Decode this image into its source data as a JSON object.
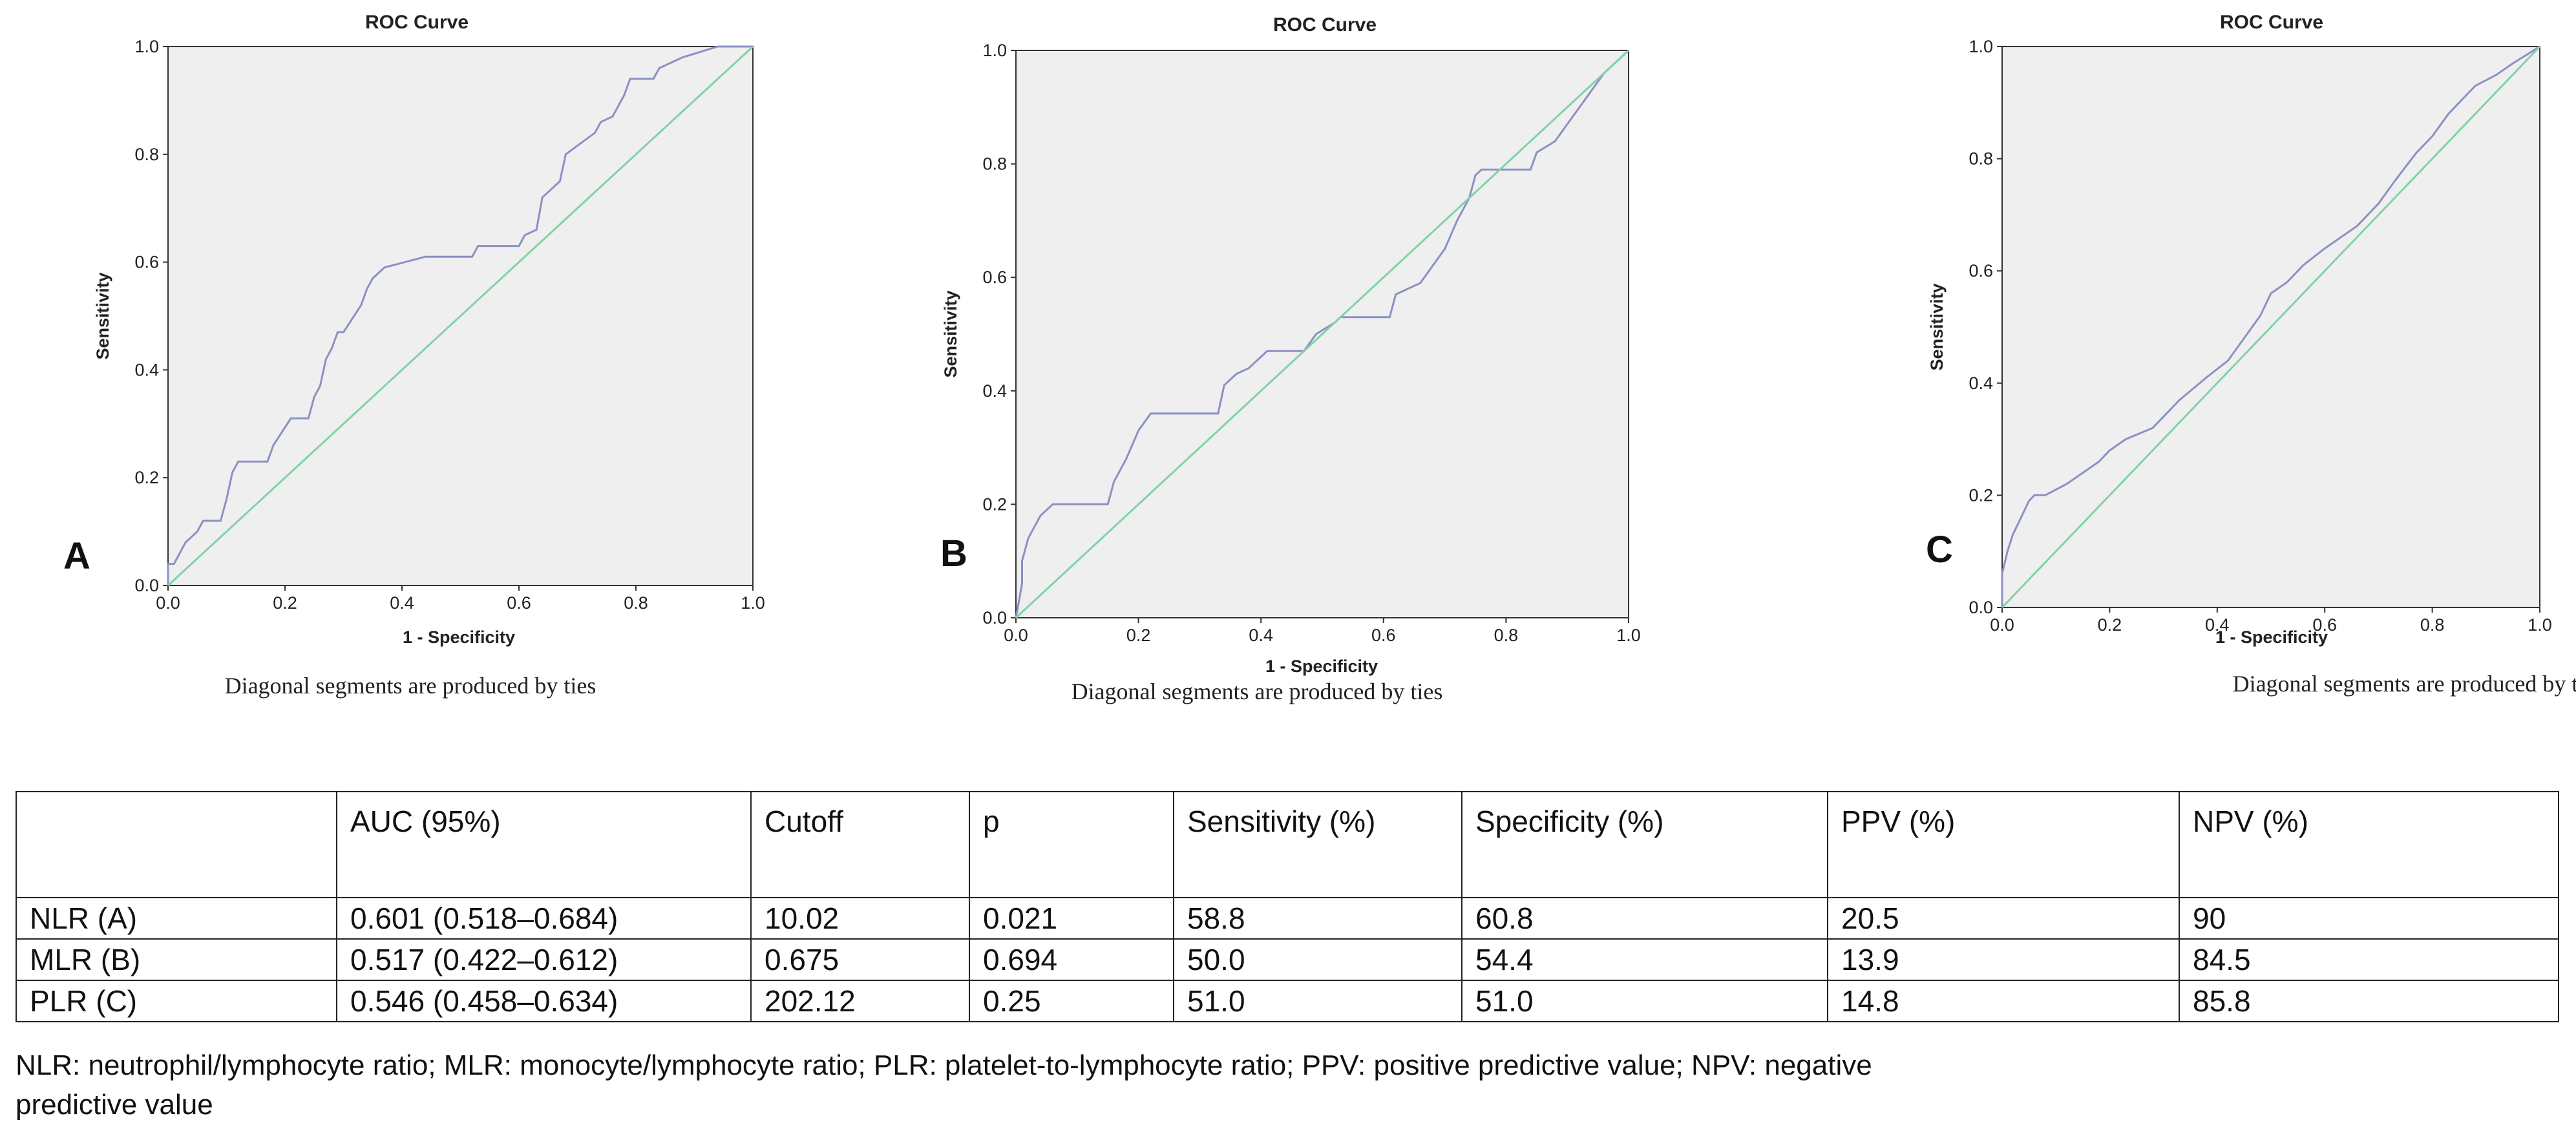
{
  "chart_data": [
    {
      "type": "line",
      "panel": "A",
      "title": "ROC Curve",
      "xlabel": "1 - Specificity",
      "ylabel": "Sensitivity",
      "xlim": [
        0,
        1
      ],
      "ylim": [
        0,
        1
      ],
      "xticks": [
        "0.0",
        "0.2",
        "0.4",
        "0.6",
        "0.8",
        "1.0"
      ],
      "yticks": [
        "0.0",
        "0.2",
        "0.4",
        "0.6",
        "0.8",
        "1.0"
      ],
      "footnote": "Diagonal segments are produced by ties",
      "series": [
        {
          "name": "ROC",
          "color": "#8B91C2",
          "x": [
            0,
            0,
            0.01,
            0.02,
            0.03,
            0.05,
            0.06,
            0.09,
            0.1,
            0.11,
            0.12,
            0.17,
            0.18,
            0.21,
            0.24,
            0.25,
            0.26,
            0.27,
            0.28,
            0.29,
            0.3,
            0.33,
            0.34,
            0.35,
            0.37,
            0.44,
            0.52,
            0.53,
            0.6,
            0.61,
            0.63,
            0.64,
            0.65,
            0.67,
            0.68,
            0.73,
            0.74,
            0.76,
            0.78,
            0.79,
            0.83,
            0.84,
            0.88,
            0.94,
            1.0
          ],
          "y": [
            0,
            0.04,
            0.04,
            0.06,
            0.08,
            0.1,
            0.12,
            0.12,
            0.16,
            0.21,
            0.23,
            0.23,
            0.26,
            0.31,
            0.31,
            0.35,
            0.37,
            0.42,
            0.44,
            0.47,
            0.47,
            0.52,
            0.55,
            0.57,
            0.59,
            0.61,
            0.61,
            0.63,
            0.63,
            0.65,
            0.66,
            0.72,
            0.73,
            0.75,
            0.8,
            0.84,
            0.86,
            0.87,
            0.91,
            0.94,
            0.94,
            0.96,
            0.98,
            1.0,
            1.0
          ]
        },
        {
          "name": "Reference Line",
          "color": "#7FD3A6",
          "x": [
            0,
            1
          ],
          "y": [
            0,
            1
          ]
        }
      ]
    },
    {
      "type": "line",
      "panel": "B",
      "title": "ROC Curve",
      "xlabel": "1 - Specificity",
      "ylabel": "Sensitivity",
      "xlim": [
        0,
        1
      ],
      "ylim": [
        0,
        1
      ],
      "xticks": [
        "0.0",
        "0.2",
        "0.4",
        "0.6",
        "0.8",
        "1.0"
      ],
      "yticks": [
        "0.0",
        "0.2",
        "0.4",
        "0.6",
        "0.8",
        "1.0"
      ],
      "footnote": "Diagonal segments are produced by ties",
      "series": [
        {
          "name": "ROC",
          "color": "#8B91C2",
          "x": [
            0,
            0.01,
            0.01,
            0.02,
            0.04,
            0.06,
            0.15,
            0.16,
            0.18,
            0.2,
            0.22,
            0.33,
            0.34,
            0.36,
            0.38,
            0.41,
            0.47,
            0.49,
            0.52,
            0.53,
            0.61,
            0.62,
            0.66,
            0.68,
            0.7,
            0.72,
            0.74,
            0.75,
            0.76,
            0.84,
            0.85,
            0.88,
            0.9,
            0.92,
            0.94,
            0.96,
            1.0
          ],
          "y": [
            0,
            0.06,
            0.1,
            0.14,
            0.18,
            0.2,
            0.2,
            0.24,
            0.28,
            0.33,
            0.36,
            0.36,
            0.41,
            0.43,
            0.44,
            0.47,
            0.47,
            0.5,
            0.52,
            0.53,
            0.53,
            0.57,
            0.59,
            0.62,
            0.65,
            0.7,
            0.74,
            0.78,
            0.79,
            0.79,
            0.82,
            0.84,
            0.87,
            0.9,
            0.93,
            0.96,
            1.0
          ]
        },
        {
          "name": "Reference Line",
          "color": "#7FD3A6",
          "x": [
            0,
            1
          ],
          "y": [
            0,
            1
          ]
        }
      ]
    },
    {
      "type": "line",
      "panel": "C",
      "title": "ROC Curve",
      "xlabel": "1 - Specificity",
      "ylabel": "Sensitivity",
      "xlim": [
        0,
        1
      ],
      "ylim": [
        0,
        1
      ],
      "xticks": [
        "0.0",
        "0.2",
        "0.4",
        "0.6",
        "0.8",
        "1.0"
      ],
      "yticks": [
        "0.0",
        "0.2",
        "0.4",
        "0.6",
        "0.8",
        "1.0"
      ],
      "footnote": "Diagonal segments are produced by ties",
      "series": [
        {
          "name": "ROC",
          "color": "#8B91C2",
          "x": [
            0,
            0,
            0.01,
            0.02,
            0.03,
            0.04,
            0.05,
            0.06,
            0.08,
            0.12,
            0.15,
            0.18,
            0.2,
            0.23,
            0.28,
            0.33,
            0.38,
            0.42,
            0.45,
            0.48,
            0.5,
            0.53,
            0.56,
            0.6,
            0.63,
            0.66,
            0.68,
            0.7,
            0.73,
            0.77,
            0.8,
            0.83,
            0.85,
            0.88,
            0.92,
            0.95,
            1.0
          ],
          "y": [
            0,
            0.06,
            0.1,
            0.13,
            0.15,
            0.17,
            0.19,
            0.2,
            0.2,
            0.22,
            0.24,
            0.26,
            0.28,
            0.3,
            0.32,
            0.37,
            0.41,
            0.44,
            0.48,
            0.52,
            0.56,
            0.58,
            0.61,
            0.64,
            0.66,
            0.68,
            0.7,
            0.72,
            0.76,
            0.81,
            0.84,
            0.88,
            0.9,
            0.93,
            0.95,
            0.97,
            1.0
          ]
        },
        {
          "name": "Reference Line",
          "color": "#7FD3A6",
          "x": [
            0,
            1
          ],
          "y": [
            0,
            1
          ]
        }
      ]
    }
  ],
  "table": {
    "headers": [
      "",
      "AUC (95%)",
      "Cutoff",
      "p",
      "Sensitivity (%)",
      "Specificity (%)",
      "PPV (%)",
      "NPV (%)"
    ],
    "rows": [
      [
        "NLR (A)",
        "0.601 (0.518–0.684)",
        "10.02",
        "0.021",
        "58.8",
        "60.8",
        "20.5",
        "90"
      ],
      [
        "MLR (B)",
        "0.517 (0.422–0.612)",
        "0.675",
        "0.694",
        "50.0",
        "54.4",
        "13.9",
        "84.5"
      ],
      [
        "PLR (C)",
        "0.546 (0.458–0.634)",
        "202.12",
        "0.25",
        "51.0",
        "51.0",
        "14.8",
        "85.8"
      ]
    ],
    "note_line1": "NLR: neutrophil/lymphocyte ratio; MLR: monocyte/lymphocyte ratio; PLR: platelet-to-lymphocyte ratio; PPV: positive predictive value; NPV: negative",
    "note_line2": "predictive value"
  }
}
